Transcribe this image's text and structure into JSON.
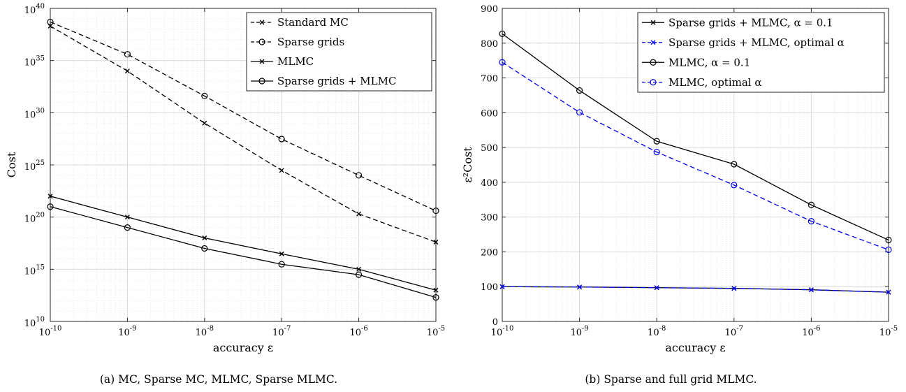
{
  "chart_data": [
    {
      "type": "line",
      "caption": "(a) MC, Sparse MC, MLMC, Sparse MLMC.",
      "xlabel": "accuracy ε",
      "ylabel": "Cost",
      "xscale": "log",
      "yscale": "log",
      "xlim": [
        1e-10,
        1e-05
      ],
      "ylim": [
        10000000000.0,
        1e+40
      ],
      "x_tick_labels": [
        {
          "base": "10",
          "exp": "-10"
        },
        {
          "base": "10",
          "exp": "-9"
        },
        {
          "base": "10",
          "exp": "-8"
        },
        {
          "base": "10",
          "exp": "-7"
        },
        {
          "base": "10",
          "exp": "-6"
        },
        {
          "base": "10",
          "exp": "-5"
        }
      ],
      "y_tick_labels": [
        {
          "base": "10",
          "exp": "10"
        },
        {
          "base": "10",
          "exp": "15"
        },
        {
          "base": "10",
          "exp": "20"
        },
        {
          "base": "10",
          "exp": "25"
        },
        {
          "base": "10",
          "exp": "30"
        },
        {
          "base": "10",
          "exp": "35"
        },
        {
          "base": "10",
          "exp": "40"
        }
      ],
      "grid": true,
      "legend_position": "top-right",
      "x": [
        1e-10,
        1e-09,
        1e-08,
        1e-07,
        1e-06,
        1e-05
      ],
      "series": [
        {
          "name": "Standard MC",
          "color": "#000000",
          "dash": "dashed",
          "marker": "x",
          "values": [
            2e+38,
            1e+34,
            1e+29,
            3e+24,
            2e+20,
            4e+17
          ]
        },
        {
          "name": "Sparse grids",
          "color": "#000000",
          "dash": "dashed",
          "marker": "o",
          "values": [
            5e+38,
            4e+35,
            4e+31,
            3e+27,
            1e+24,
            4e+20
          ]
        },
        {
          "name": "MLMC",
          "color": "#000000",
          "dash": "solid",
          "marker": "x",
          "values": [
            1e+22,
            1e+20,
            1e+18,
            3e+16,
            1000000000000000.0,
            10000000000000.0
          ]
        },
        {
          "name": "Sparse grids + MLMC",
          "color": "#000000",
          "dash": "solid",
          "marker": "o",
          "values": [
            1e+21,
            1e+19,
            1e+17,
            3000000000000000.0,
            300000000000000.0,
            2000000000000.0
          ]
        }
      ]
    },
    {
      "type": "line",
      "caption": "(b) Sparse and full grid MLMC.",
      "xlabel": "accuracy ε",
      "ylabel": "ε²Cost",
      "xscale": "log",
      "yscale": "linear",
      "xlim": [
        1e-10,
        1e-05
      ],
      "ylim": [
        0,
        900
      ],
      "x_tick_labels": [
        {
          "base": "10",
          "exp": "-10"
        },
        {
          "base": "10",
          "exp": "-9"
        },
        {
          "base": "10",
          "exp": "-8"
        },
        {
          "base": "10",
          "exp": "-7"
        },
        {
          "base": "10",
          "exp": "-6"
        },
        {
          "base": "10",
          "exp": "-5"
        }
      ],
      "y_tick_labels": [
        "0",
        "100",
        "200",
        "300",
        "400",
        "500",
        "600",
        "700",
        "800",
        "900"
      ],
      "grid": true,
      "legend_position": "top-right",
      "x": [
        1e-10,
        1e-09,
        1e-08,
        1e-07,
        1e-06,
        1e-05
      ],
      "series": [
        {
          "name": "Sparse grids + MLMC, α = 0.1",
          "color": "#000000",
          "dash": "solid",
          "marker": "x",
          "values": [
            100,
            99,
            97,
            95,
            91,
            84
          ]
        },
        {
          "name": "Sparse grids + MLMC, optimal α",
          "color": "#0000ee",
          "dash": "dashed",
          "marker": "x",
          "values": [
            100,
            99,
            97,
            95,
            91,
            84
          ]
        },
        {
          "name": "MLMC, α = 0.1",
          "color": "#000000",
          "dash": "solid",
          "marker": "o",
          "values": [
            827,
            664,
            518,
            452,
            335,
            234
          ]
        },
        {
          "name": "MLMC, optimal α",
          "color": "#0000ee",
          "dash": "dashed",
          "marker": "o",
          "values": [
            745,
            601,
            487,
            392,
            288,
            206
          ]
        }
      ]
    }
  ]
}
